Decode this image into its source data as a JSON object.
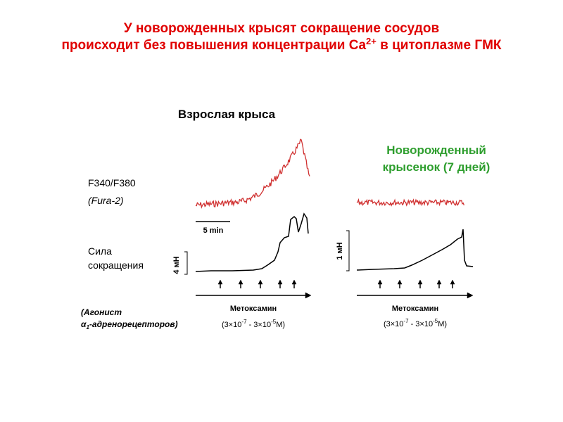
{
  "title": {
    "line1": "У новорожденных крысят сокращение сосудов",
    "line2_start": "происходит без повышения концентрации Ca",
    "line2_sup": "2+",
    "line2_end": " в цитоплазме ГМК"
  },
  "adult": {
    "label": "Взрослая крыса",
    "scale_bar": "5 min",
    "force_scale": "4 мН",
    "drug": "Метоксамин",
    "conc": {
      "a": "(3×10",
      "e1": "-7",
      "b": " - 3×10",
      "e2": "-5",
      "c": "М)"
    }
  },
  "newborn": {
    "label": [
      "Новорожденный",
      "крысенок (7 дней)"
    ],
    "force_scale": "1 мН",
    "drug": "Метоксамин",
    "conc": {
      "a": "(3×10",
      "e1": "-7",
      "b": " - 3×10",
      "e2": "-5",
      "c": "М)"
    }
  },
  "labels": {
    "ratio": "F340/F380",
    "dye": "(Fura-2)",
    "force": [
      "Сила",
      "сокращения"
    ],
    "agonist_line1": "(Агонист",
    "agonist_alpha": "α",
    "agonist_sub": "1",
    "agonist_rest": "-адренорецепторов)"
  }
}
